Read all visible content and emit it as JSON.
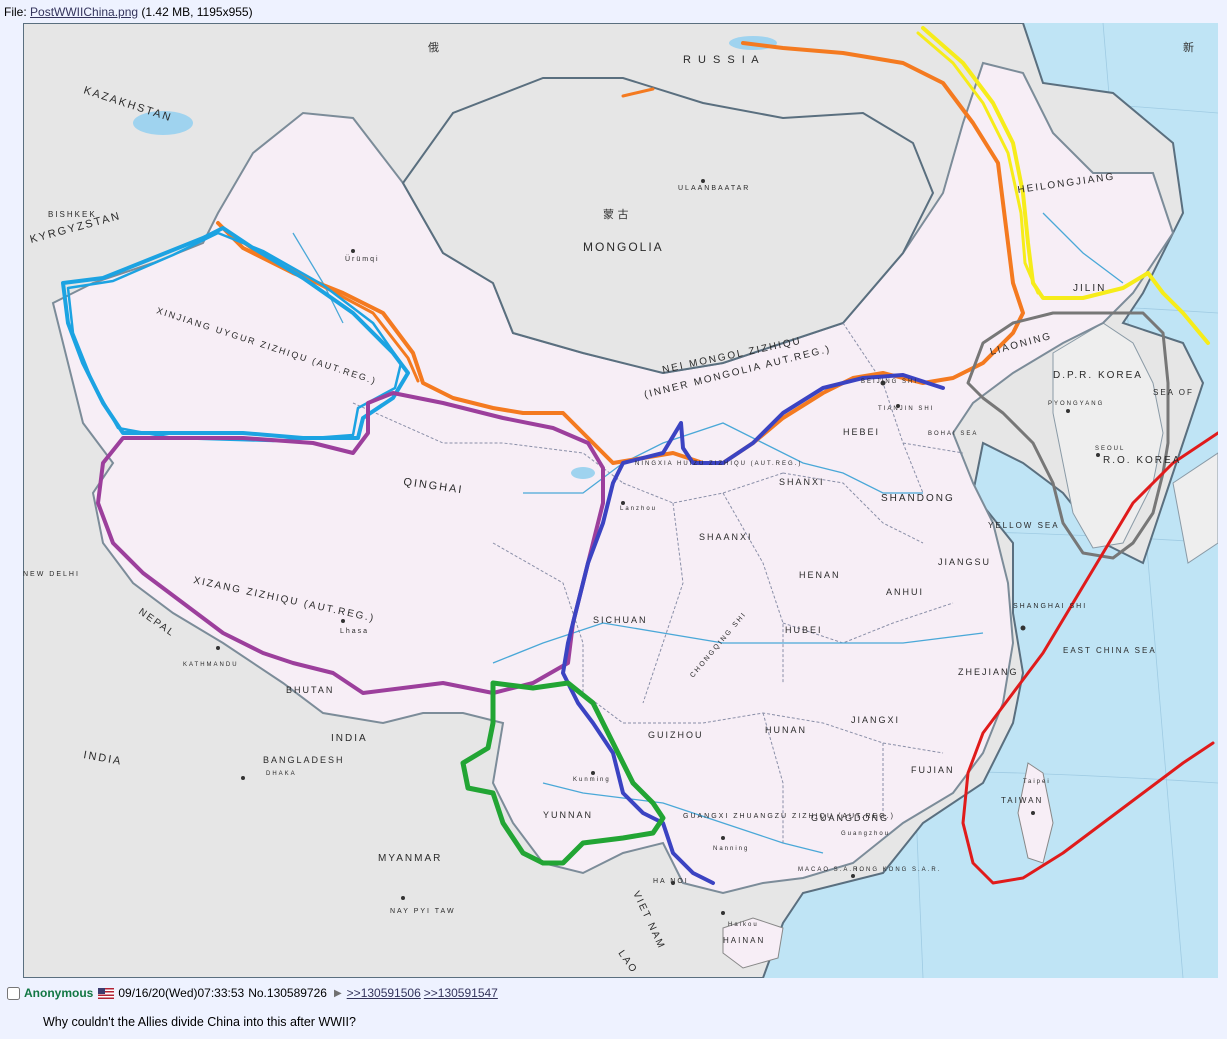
{
  "file": {
    "prefix": "File:",
    "filename": "PostWWIIChina.png",
    "meta": "(1.42 MB, 1195x955)"
  },
  "map": {
    "labels": {
      "kazakhstan": "KAZAKHSTAN",
      "kyrgyzstan": "KYRGYZSTAN",
      "russia": "R U S S I A",
      "mongolia": "MONGOLIA",
      "ulaanbaatar": "ULAANBAATAR",
      "xinjiang": "XINJIANG UYGUR ZIZHIQU (AUT.REG.)",
      "urumqi": "Ürümqi",
      "qinghai": "QINGHAI",
      "xizang": "XIZANG ZIZHIQU (AUT.REG.)",
      "lhasa": "Lhasa",
      "nei_mongol": "NEI MONGOL ZIZHIQU",
      "inner_mongolia": "(INNER MONGOLIA AUT.REG.)",
      "heilongjiang": "HEILONGJIANG",
      "jilin": "JILIN",
      "liaoning": "LIAONING",
      "dprk": "D.P.R. KOREA",
      "pyongyang": "PYONGYANG",
      "seoul": "SEOUL",
      "rok": "R.O. KOREA",
      "hebei": "HEBEI",
      "beijing": "BEIJING SHI",
      "tianjin": "TIANJIN SHI",
      "shanxi": "SHANXI",
      "shandong": "SHANDONG",
      "yellow_sea": "YELLOW SEA",
      "bohai_sea": "BOHAI SEA",
      "ningxia": "NINGXIA HUIZU ZIZHIQU (AUT.REG.)",
      "lanzhou": "Lanzhou",
      "shaanxi": "SHAANXI",
      "henan": "HENAN",
      "jiangsu": "JIANGSU",
      "anhui": "ANHUI",
      "shanghai": "SHANGHAI SHI",
      "sichuan": "SICHUAN",
      "chongqing": "CHONGQING SHI",
      "hubei": "HUBEI",
      "zhejiang": "ZHEJIANG",
      "east_china_sea": "EAST CHINA SEA",
      "guizhou": "GUIZHOU",
      "hunan": "HUNAN",
      "jiangxi": "JIANGXI",
      "fujian": "FUJIAN",
      "taiwan": "TAIWAN",
      "taipei": "Taipei",
      "yunnan": "YUNNAN",
      "kunming": "Kunming",
      "guangxi": "GUANGXI ZHUANGZU ZIZHIQU (AUT.REG.)",
      "nanning": "Nanning",
      "guangdong": "GUANGDONG",
      "guangzhou": "Guangzhou",
      "macao": "MACAO S.A.R.",
      "hongkong": "HONG KONG S.A.R.",
      "hainan": "HAINAN",
      "haikou": "Haikou",
      "nepal": "NEPAL",
      "kathmandu": "KATHMANDU",
      "bhutan": "BHUTAN",
      "india_region": "INDIA",
      "india": "INDIA",
      "bangladesh": "BANGLADESH",
      "dhaka": "DHAKA",
      "new_delhi": "NEW DELHI",
      "myanmar": "MYANMAR",
      "nay_pyi_taw": "NAY PYI TAW",
      "ha_noi": "HA NOI",
      "viet_nam": "VIET NAM",
      "lao": "LAO",
      "bishkek": "BISHKEK",
      "heihe_region": "SEA OF",
      "cn_china_label": "新",
      "cn_mongolia": "蒙 古",
      "cn_russia": "俄"
    },
    "colors": {
      "ocean": "#bfe4f5",
      "land_foreign": "#e6e6e6",
      "china_land": "#f7eef6",
      "border_foreign": "#5a6f7f",
      "river": "#4aa8d8",
      "orange": "#f47a20",
      "yellow": "#f6ec1a",
      "cyan": "#1ca3e2",
      "purple": "#9c3f9c",
      "blue": "#3b43c2",
      "green": "#22a534",
      "gray": "#777777",
      "red": "#e01b1b"
    }
  },
  "post": {
    "name": "Anonymous",
    "datetime": "09/16/20(Wed)07:33:53",
    "number": "No.130589726",
    "backlinks": [
      ">>130591506",
      ">>130591547"
    ],
    "message": "Why couldn't the Allies divide China into this after WWII?"
  }
}
